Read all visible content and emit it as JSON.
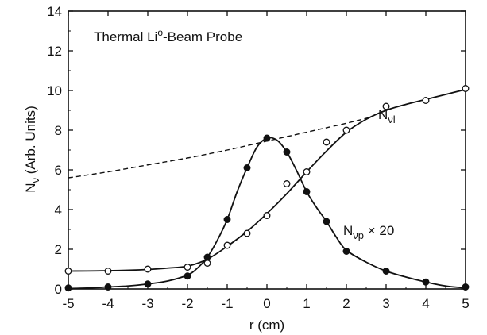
{
  "chart_data": {
    "type": "line",
    "title": "Thermal Li°-Beam Probe",
    "title_main": "Thermal Li",
    "title_sup": "o",
    "title_rest": "-Beam Probe",
    "xlabel": "r (cm)",
    "ylabel": "Nν (Arb. Units)",
    "ylabel_base": "N",
    "ylabel_sub": "ν",
    "ylabel_rest": " (Arb. Units)",
    "xlim": [
      -5,
      5
    ],
    "ylim": [
      0,
      14
    ],
    "xticks": [
      -5,
      -4,
      -3,
      -2,
      -1,
      0,
      1,
      2,
      3,
      4,
      5
    ],
    "yticks": [
      0,
      2,
      4,
      6,
      8,
      10,
      12,
      14
    ],
    "x_tick_labels": [
      "-5",
      "-4",
      "-3",
      "-2",
      "-1",
      "0",
      "1",
      "2",
      "3",
      "4",
      "5"
    ],
    "y_tick_labels": [
      "0",
      "2",
      "4",
      "6",
      "8",
      "10",
      "12",
      "14"
    ],
    "grid": false,
    "series": [
      {
        "name": "Nνl",
        "label_base": "N",
        "label_sub": "νl",
        "label_suffix": "",
        "marker": "open-circle",
        "points": [
          [
            -5,
            0.9
          ],
          [
            -4,
            0.9
          ],
          [
            -3,
            1.0
          ],
          [
            -2,
            1.1
          ],
          [
            -1.5,
            1.3
          ],
          [
            -1,
            2.2
          ],
          [
            -0.5,
            2.8
          ],
          [
            0,
            3.7
          ],
          [
            0.5,
            5.3
          ],
          [
            1,
            5.9
          ],
          [
            1.5,
            7.4
          ],
          [
            2,
            8.0
          ],
          [
            3,
            9.2
          ],
          [
            4,
            9.5
          ],
          [
            5,
            10.1
          ]
        ],
        "curve": [
          [
            -5,
            0.9
          ],
          [
            -4,
            0.92
          ],
          [
            -3,
            0.98
          ],
          [
            -2.5,
            1.05
          ],
          [
            -2,
            1.15
          ],
          [
            -1.5,
            1.5
          ],
          [
            -1,
            2.15
          ],
          [
            -0.5,
            2.9
          ],
          [
            0,
            3.8
          ],
          [
            0.5,
            4.8
          ],
          [
            1,
            5.9
          ],
          [
            1.5,
            6.95
          ],
          [
            2,
            7.9
          ],
          [
            2.5,
            8.55
          ],
          [
            3,
            9.0
          ],
          [
            3.5,
            9.3
          ],
          [
            4,
            9.55
          ],
          [
            4.5,
            9.8
          ],
          [
            5,
            10.05
          ]
        ]
      },
      {
        "name": "Nνp × 20",
        "label_base": "N",
        "label_sub": "νp",
        "label_suffix": " × 20",
        "marker": "filled-circle",
        "points": [
          [
            -5,
            0.05
          ],
          [
            -4,
            0.1
          ],
          [
            -3,
            0.25
          ],
          [
            -2,
            0.65
          ],
          [
            -1.5,
            1.6
          ],
          [
            -1,
            3.5
          ],
          [
            -0.5,
            6.1
          ],
          [
            0,
            7.6
          ],
          [
            0.5,
            6.9
          ],
          [
            1,
            4.9
          ],
          [
            1.5,
            3.4
          ],
          [
            2,
            1.9
          ],
          [
            3,
            0.9
          ],
          [
            4,
            0.35
          ],
          [
            5,
            0.1
          ]
        ],
        "curve": [
          [
            -5,
            0.02
          ],
          [
            -4.5,
            0.05
          ],
          [
            -4,
            0.1
          ],
          [
            -3.5,
            0.15
          ],
          [
            -3,
            0.25
          ],
          [
            -2.5,
            0.4
          ],
          [
            -2,
            0.7
          ],
          [
            -1.75,
            1.05
          ],
          [
            -1.5,
            1.6
          ],
          [
            -1.25,
            2.45
          ],
          [
            -1,
            3.5
          ],
          [
            -0.75,
            4.9
          ],
          [
            -0.5,
            6.1
          ],
          [
            -0.25,
            7.15
          ],
          [
            0,
            7.6
          ],
          [
            0.25,
            7.5
          ],
          [
            0.5,
            6.9
          ],
          [
            0.75,
            5.95
          ],
          [
            1,
            4.9
          ],
          [
            1.25,
            4.1
          ],
          [
            1.5,
            3.4
          ],
          [
            1.75,
            2.6
          ],
          [
            2,
            1.95
          ],
          [
            2.5,
            1.35
          ],
          [
            3,
            0.9
          ],
          [
            3.5,
            0.6
          ],
          [
            4,
            0.35
          ],
          [
            4.5,
            0.15
          ],
          [
            5,
            0.05
          ]
        ]
      },
      {
        "name": "extrapolation",
        "style": "dashed",
        "curve": [
          [
            -5,
            5.6
          ],
          [
            -4,
            5.9
          ],
          [
            -3,
            6.25
          ],
          [
            -2,
            6.6
          ],
          [
            -1,
            7.0
          ],
          [
            0,
            7.45
          ],
          [
            1,
            7.9
          ],
          [
            2,
            8.35
          ],
          [
            2.6,
            8.65
          ]
        ]
      }
    ],
    "colors": {
      "ink": "#111111",
      "background": "#ffffff"
    }
  }
}
